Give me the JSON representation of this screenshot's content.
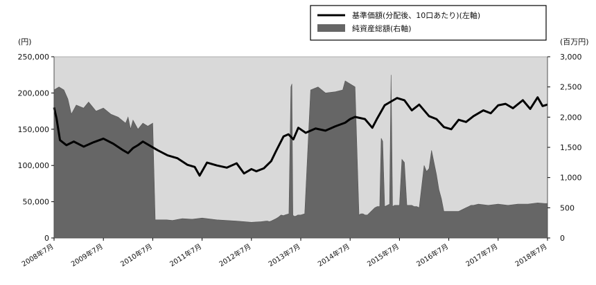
{
  "chart_data": {
    "type": "line",
    "left_axis": {
      "unit_label": "(円)",
      "ylim": [
        0,
        250000
      ],
      "ticks": [
        0,
        50000,
        100000,
        150000,
        200000,
        250000
      ],
      "tick_labels": [
        "0",
        "50,000",
        "100,000",
        "150,000",
        "200,000",
        "250,000"
      ]
    },
    "right_axis": {
      "unit_label": "(百万円)",
      "ylim": [
        0,
        3000
      ],
      "ticks": [
        0,
        500,
        1000,
        1500,
        2000,
        2500,
        3000
      ],
      "tick_labels": [
        "0",
        "500",
        "1,000",
        "1,500",
        "2,000",
        "2,500",
        "3,000"
      ]
    },
    "x_axis": {
      "tick_labels": [
        "2008年7月",
        "2009年7月",
        "2010年7月",
        "2011年7月",
        "2012年7月",
        "2013年7月",
        "2014年7月",
        "2015年7月",
        "2016年7月",
        "2017年7月",
        "2018年7月"
      ]
    },
    "legend": {
      "placement": "top-right",
      "line_label": "基準価額(分配後、10口あたり)(左軸)",
      "area_label": "純資産総額(右軸)"
    },
    "series": [
      {
        "name": "基準価額(分配後、10口あたり)(左軸)",
        "axis": "left",
        "kind": "line",
        "x": [
          2008.5,
          2008.55,
          2008.62,
          2008.75,
          2008.9,
          2009.1,
          2009.3,
          2009.5,
          2009.7,
          2009.9,
          2010.0,
          2010.1,
          2010.2,
          2010.3,
          2010.45,
          2010.6,
          2010.8,
          2011.0,
          2011.2,
          2011.35,
          2011.45,
          2011.6,
          2011.8,
          2012.0,
          2012.2,
          2012.35,
          2012.5,
          2012.6,
          2012.75,
          2012.9,
          2013.0,
          2013.15,
          2013.25,
          2013.35,
          2013.45,
          2013.6,
          2013.8,
          2014.0,
          2014.2,
          2014.4,
          2014.5,
          2014.6,
          2014.8,
          2014.95,
          2015.05,
          2015.2,
          2015.3,
          2015.45,
          2015.6,
          2015.75,
          2015.9,
          2016.1,
          2016.25,
          2016.4,
          2016.55,
          2016.7,
          2016.85,
          2017.0,
          2017.2,
          2017.35,
          2017.5,
          2017.65,
          2017.8,
          2018.0,
          2018.15,
          2018.3,
          2018.4,
          2018.5
        ],
        "values": [
          180000,
          165000,
          135000,
          128000,
          133000,
          126000,
          132000,
          137000,
          130000,
          121000,
          117000,
          124000,
          128000,
          133000,
          127000,
          121000,
          114000,
          110000,
          101000,
          98000,
          86000,
          104000,
          100000,
          97000,
          103000,
          89000,
          95000,
          92000,
          96000,
          106000,
          120000,
          140000,
          143000,
          136000,
          152000,
          145000,
          151000,
          148000,
          154000,
          159000,
          164000,
          167000,
          164000,
          152000,
          165000,
          183000,
          187000,
          193000,
          190000,
          176000,
          184000,
          168000,
          164000,
          153000,
          150000,
          163000,
          160000,
          168000,
          176000,
          172000,
          183000,
          185000,
          179000,
          190000,
          178000,
          194000,
          182000,
          184000
        ]
      },
      {
        "name": "純資産総額(右軸)",
        "axis": "right",
        "kind": "area",
        "x": [
          2008.5,
          2008.6,
          2008.7,
          2008.78,
          2008.85,
          2008.95,
          2009.1,
          2009.2,
          2009.35,
          2009.5,
          2009.65,
          2009.8,
          2009.95,
          2010.0,
          2010.05,
          2010.1,
          2010.2,
          2010.3,
          2010.4,
          2010.5,
          2010.55,
          2010.6,
          2010.65,
          2010.7,
          2010.75,
          2010.78,
          2010.9,
          2011.1,
          2011.3,
          2011.5,
          2011.8,
          2012.2,
          2012.5,
          2012.7,
          2012.8,
          2012.83,
          2012.86,
          2012.9,
          2012.95,
          2013.0,
          2013.04,
          2013.07,
          2013.1,
          2013.15,
          2013.18,
          2013.22,
          2013.26,
          2013.3,
          2013.32,
          2013.34,
          2013.36,
          2013.4,
          2013.44,
          2013.5,
          2013.58,
          2013.7,
          2013.85,
          2014.0,
          2014.2,
          2014.35,
          2014.4,
          2014.6,
          2014.68,
          2014.72,
          2014.76,
          2014.8,
          2014.85,
          2014.9,
          2014.95,
          2015.0,
          2015.05,
          2015.1,
          2015.13,
          2015.16,
          2015.2,
          2015.3,
          2015.33,
          2015.36,
          2015.4,
          2015.5,
          2015.55,
          2015.6,
          2015.65,
          2015.7,
          2015.75,
          2015.8,
          2015.85,
          2015.9,
          2016.0,
          2016.05,
          2016.1,
          2016.15,
          2016.2,
          2016.25,
          2016.3,
          2016.35,
          2016.4,
          2016.45,
          2016.48,
          2016.5,
          2016.55,
          2016.6,
          2016.63,
          2016.66,
          2016.7,
          2016.75,
          2016.8,
          2016.85,
          2016.9,
          2016.95,
          2017.0,
          2017.1,
          2017.3,
          2017.5,
          2017.7,
          2017.9,
          2018.1,
          2018.3,
          2018.45,
          2018.5
        ],
        "values": [
          2450,
          2500,
          2450,
          2300,
          2050,
          2200,
          2150,
          2250,
          2100,
          2150,
          2050,
          2000,
          1900,
          2000,
          1800,
          1950,
          1800,
          1900,
          1850,
          1900,
          300,
          300,
          300,
          300,
          300,
          300,
          290,
          320,
          310,
          330,
          300,
          280,
          260,
          270,
          280,
          280,
          270,
          280,
          300,
          320,
          340,
          360,
          380,
          370,
          380,
          390,
          400,
          2500,
          2550,
          380,
          360,
          360,
          380,
          380,
          400,
          2450,
          2500,
          2400,
          2420,
          2450,
          2600,
          2500,
          380,
          400,
          400,
          380,
          380,
          420,
          460,
          500,
          520,
          520,
          1650,
          1600,
          520,
          560,
          2700,
          520,
          540,
          540,
          1300,
          1250,
          540,
          540,
          540,
          520,
          520,
          500,
          1200,
          1100,
          1150,
          1450,
          1250,
          1050,
          800,
          650,
          440,
          440,
          440,
          440,
          440,
          440,
          440,
          440,
          440,
          460,
          480,
          500,
          520,
          540,
          540,
          560,
          540,
          560,
          540,
          560,
          560,
          580,
          570,
          570
        ]
      }
    ],
    "grid": false,
    "plot_background": "#d9d9d9",
    "line_color": "#000000",
    "area_color": "#666666"
  }
}
